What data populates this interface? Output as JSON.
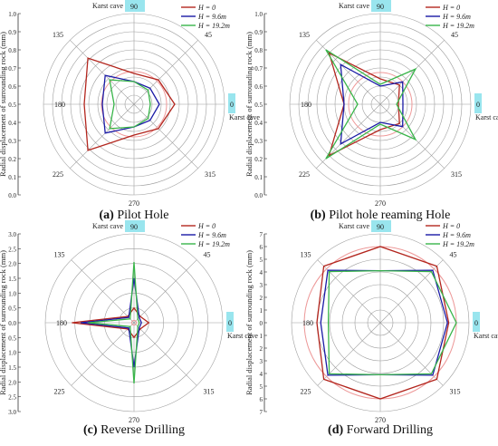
{
  "figure": {
    "radial_axis_label": "Radial displacement of surrounding rock (mm)",
    "karst_label": "Karst cave",
    "angle_labels": [
      "90",
      "45",
      "0",
      "315",
      "270",
      "225",
      "180",
      "135"
    ],
    "legend": [
      "H = 0",
      "H = 9.6m",
      "H = 19.2m"
    ],
    "colors": {
      "h0": "#b3261e",
      "h96": "#1a1aa6",
      "h192": "#39b54a",
      "circle": "#ef9a9a",
      "grid": "#9e9e9e",
      "highlight": "#80deea"
    }
  },
  "chart_data": [
    {
      "type": "radar",
      "panel": "a",
      "caption_letter": "(a)",
      "caption_text": " Pilot Hole",
      "angles": [
        0,
        45,
        90,
        135,
        180,
        225,
        270,
        315
      ],
      "rmax": 1.0,
      "ticks": [
        "1.0",
        "0.9",
        "0.8",
        "0.7",
        "0.6",
        "0.5",
        "0.4",
        "0.3",
        "0.2",
        "0.1",
        "0.0"
      ],
      "tick_values": [
        1.0,
        0.9,
        0.8,
        0.7,
        0.6,
        0.5,
        0.4,
        0.3,
        0.2,
        0.1,
        0.0
      ],
      "ref_circle": 0.36,
      "series": [
        {
          "name": "H = 0",
          "values": [
            0.45,
            0.38,
            0.34,
            0.72,
            0.55,
            0.72,
            0.34,
            0.38
          ]
        },
        {
          "name": "H = 9.6m",
          "values": [
            0.28,
            0.25,
            0.25,
            0.45,
            0.35,
            0.45,
            0.25,
            0.25
          ]
        },
        {
          "name": "H = 19.2m",
          "values": [
            0.18,
            0.22,
            0.25,
            0.38,
            0.22,
            0.38,
            0.25,
            0.22
          ]
        }
      ]
    },
    {
      "type": "radar",
      "panel": "b",
      "caption_letter": "(b)",
      "caption_text": " Pilot hole reaming Hole",
      "angles": [
        0,
        45,
        90,
        135,
        180,
        225,
        270,
        315
      ],
      "rmax": 1.0,
      "ticks": [
        "1.0",
        "0.9",
        "0.8",
        "0.7",
        "0.6",
        "0.5",
        "0.4",
        "0.3",
        "0.2",
        "0.1",
        "0.0"
      ],
      "tick_values": [
        1.0,
        0.9,
        0.8,
        0.7,
        0.6,
        0.5,
        0.4,
        0.3,
        0.2,
        0.1,
        0.0
      ],
      "ref_circle": 0.35,
      "series": [
        {
          "name": "H = 0",
          "values": [
            0.2,
            0.3,
            0.28,
            0.8,
            0.4,
            0.8,
            0.28,
            0.3
          ]
        },
        {
          "name": "H = 9.6m",
          "values": [
            0.25,
            0.35,
            0.2,
            0.62,
            0.4,
            0.62,
            0.2,
            0.35
          ]
        },
        {
          "name": "H = 19.2m",
          "values": [
            0.18,
            0.55,
            0.22,
            0.85,
            0.25,
            0.85,
            0.22,
            0.55
          ]
        }
      ]
    },
    {
      "type": "radar",
      "panel": "c",
      "caption_letter": "(c)",
      "caption_text": " Reverse Drilling",
      "angles": [
        0,
        45,
        90,
        135,
        180,
        225,
        270,
        315
      ],
      "rmax": 3.0,
      "ticks": [
        "3.0",
        "2.5",
        "2.0",
        "1.5",
        "1.0",
        "0.5",
        "0.0",
        "0.5",
        "1.0",
        "1.5",
        "2.0",
        "2.5",
        "3.0"
      ],
      "tick_values": [
        3.0,
        2.5,
        2.0,
        1.5,
        1.0,
        0.5,
        0.0,
        0.5,
        1.0,
        1.5,
        2.0,
        2.5,
        3.0
      ],
      "ref_circle": 0.08,
      "series": [
        {
          "name": "H = 0",
          "values": [
            0.5,
            0.3,
            0.5,
            0.3,
            2.1,
            0.3,
            0.5,
            0.3
          ]
        },
        {
          "name": "H = 9.6m",
          "values": [
            0.25,
            0.25,
            1.5,
            0.25,
            1.8,
            0.25,
            1.5,
            0.25
          ]
        },
        {
          "name": "H = 19.2m",
          "values": [
            0.18,
            0.18,
            2.05,
            0.18,
            1.55,
            0.18,
            2.05,
            0.18
          ]
        }
      ]
    },
    {
      "type": "radar",
      "panel": "d",
      "caption_letter": "(d)",
      "caption_text": " Forward Drilling",
      "angles": [
        0,
        45,
        90,
        135,
        180,
        225,
        270,
        315
      ],
      "rmax": 7.0,
      "ticks": [
        "7",
        "6",
        "5",
        "4",
        "3",
        "2",
        "1",
        "0",
        "1",
        "2",
        "3",
        "4",
        "5",
        "6",
        "7"
      ],
      "tick_values": [
        7,
        6,
        5,
        4,
        3,
        2,
        1,
        0,
        1,
        2,
        3,
        4,
        5,
        6,
        7
      ],
      "ref_circle": 6.0,
      "series": [
        {
          "name": "H = 0",
          "values": [
            5.4,
            6.3,
            6.0,
            6.3,
            5.0,
            6.3,
            6.0,
            6.3
          ]
        },
        {
          "name": "H = 9.6m",
          "values": [
            5.3,
            5.85,
            4.1,
            5.85,
            4.7,
            5.85,
            4.1,
            5.85
          ]
        },
        {
          "name": "H = 19.2m",
          "values": [
            6.0,
            5.7,
            4.1,
            5.7,
            4.1,
            5.7,
            4.1,
            5.7
          ]
        }
      ]
    }
  ]
}
